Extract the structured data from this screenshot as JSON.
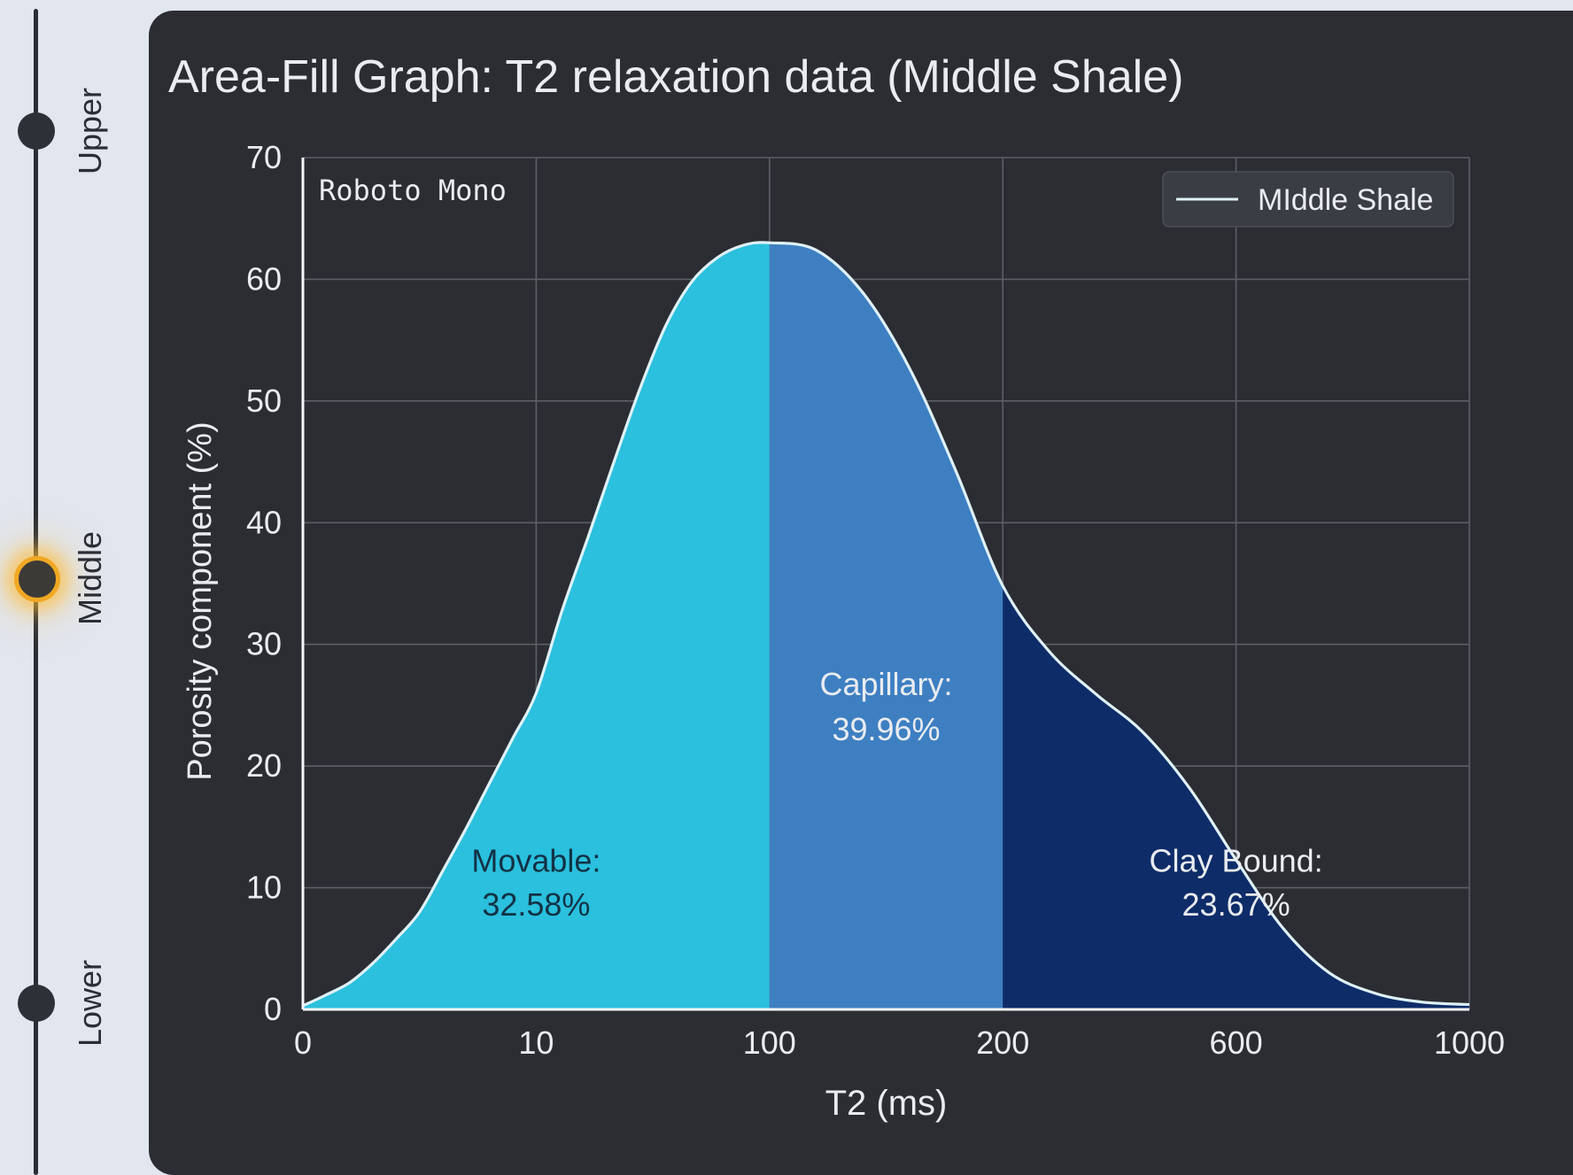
{
  "rail": {
    "stops": [
      {
        "label": "Upper",
        "active": false
      },
      {
        "label": "Middle",
        "active": true
      },
      {
        "label": "Lower",
        "active": false
      }
    ]
  },
  "annotation": "Roboto Mono",
  "colors": {
    "panel_bg": "#2b2d32",
    "grid": "#5b5f66",
    "text": "#e9ecf0",
    "curve": "#dff1f8",
    "movable": "#2ac0de",
    "capillary": "#3e7fc2",
    "clay_bound": "#0e2c68",
    "accent": "#f0a824"
  },
  "chart_data": {
    "type": "area",
    "title": "Area-Fill Graph: T2 relaxation data (Middle Shale)",
    "xlabel": "T2 (ms)",
    "ylabel": "Porosity component (%)",
    "x_ticks": [
      "0",
      "10",
      "100",
      "200",
      "600",
      "1000"
    ],
    "ylim": [
      0,
      70
    ],
    "y_ticks": [
      0,
      10,
      20,
      30,
      40,
      50,
      60,
      70
    ],
    "grid": true,
    "legend": {
      "position": "top-right",
      "entries": [
        "MIddle Shale"
      ]
    },
    "series": [
      {
        "name": "MIddle Shale",
        "x": [
          0,
          1,
          2,
          3,
          4,
          5,
          6,
          7,
          8,
          9,
          10,
          20,
          30,
          40,
          50,
          60,
          70,
          80,
          90,
          100,
          120,
          140,
          160,
          180,
          200,
          280,
          360,
          440,
          520,
          600,
          680,
          760,
          840,
          920,
          1000
        ],
        "values": [
          0.3,
          1.2,
          2.2,
          3.8,
          5.8,
          8.0,
          11.4,
          14.9,
          18.6,
          22.3,
          26.0,
          32.8,
          38.8,
          45.0,
          51.0,
          56.2,
          59.8,
          61.8,
          62.8,
          63.0,
          62.4,
          58.9,
          52.7,
          44.2,
          34.8,
          29.4,
          25.9,
          22.8,
          18.2,
          12.3,
          6.7,
          3.0,
          1.3,
          0.6,
          0.4
        ]
      }
    ],
    "regions": [
      {
        "label": "Movable:",
        "value": "32.58%",
        "x_range": [
          0,
          100
        ],
        "color": "#2ac0de"
      },
      {
        "label": "Capillary:",
        "value": "39.96%",
        "x_range": [
          100,
          200
        ],
        "color": "#3e7fc2"
      },
      {
        "label": "Clay Bound:",
        "value": "23.67%",
        "x_range": [
          200,
          1000
        ],
        "color": "#0e2c68"
      }
    ]
  }
}
